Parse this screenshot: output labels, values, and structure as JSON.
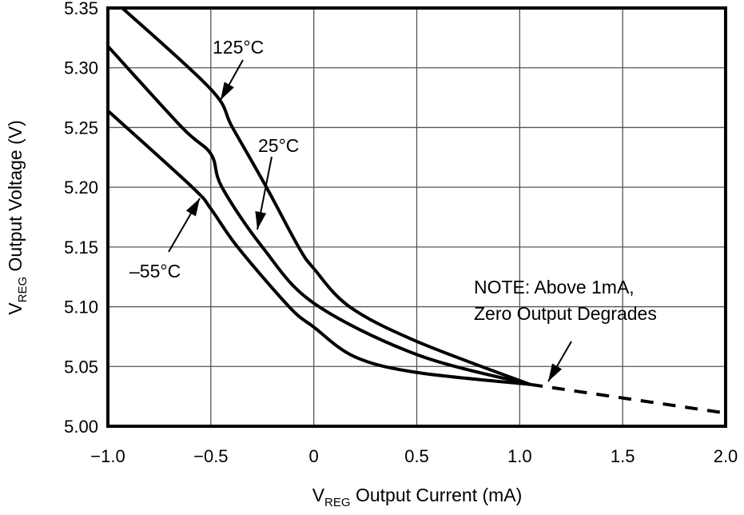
{
  "chart_data": {
    "type": "line",
    "xlabel": {
      "main": "V",
      "sub": "REG",
      "rest": " Output Current (mA)"
    },
    "ylabel": {
      "main": "V",
      "sub": "REG",
      "rest": " Output Voltage (V)"
    },
    "xlim": [
      -1.0,
      2.0
    ],
    "ylim": [
      5.0,
      5.35
    ],
    "xticks": [
      "−1.0",
      "−0.5",
      "0",
      "0.5",
      "1.0",
      "1.5",
      "2.0"
    ],
    "xtick_values": [
      -1.0,
      -0.5,
      0,
      0.5,
      1.0,
      1.5,
      2.0
    ],
    "yticks": [
      "5.00",
      "5.05",
      "5.10",
      "5.15",
      "5.20",
      "5.25",
      "5.30",
      "5.35"
    ],
    "ytick_values": [
      5.0,
      5.05,
      5.1,
      5.15,
      5.2,
      5.25,
      5.3,
      5.35
    ],
    "grid": true,
    "line_color": "#000000",
    "series": [
      {
        "name": "125°C",
        "x": [
          -0.93,
          -0.5,
          -0.395,
          -0.23,
          -0.074,
          0,
          0.174,
          0.5,
          1.05
        ],
        "y": [
          5.35,
          5.282,
          5.25,
          5.2,
          5.15,
          5.132,
          5.1,
          5.071,
          5.035
        ]
      },
      {
        "name": "25°C",
        "x": [
          -1.0,
          -0.64,
          -0.5,
          -0.446,
          -0.25,
          0,
          0.5,
          1.05
        ],
        "y": [
          5.318,
          5.25,
          5.228,
          5.2,
          5.15,
          5.103,
          5.06,
          5.035
        ]
      },
      {
        "name": "–55°C",
        "x": [
          -1.0,
          -0.59,
          -0.5,
          -0.37,
          -0.12,
          0,
          0.2,
          0.5,
          1.05
        ],
        "y": [
          5.264,
          5.2,
          5.182,
          5.15,
          5.1,
          5.083,
          5.058,
          5.045,
          5.035
        ]
      },
      {
        "name": "",
        "style": "dashed",
        "x": [
          1.05,
          2.0
        ],
        "y": [
          5.035,
          5.011
        ]
      }
    ],
    "annotations": [
      {
        "text": "125°C"
      },
      {
        "text": "25°C"
      },
      {
        "text": "–55°C"
      },
      {
        "text_lines": [
          "NOTE: Above 1mA,",
          "Zero Output Degrades"
        ]
      }
    ]
  }
}
